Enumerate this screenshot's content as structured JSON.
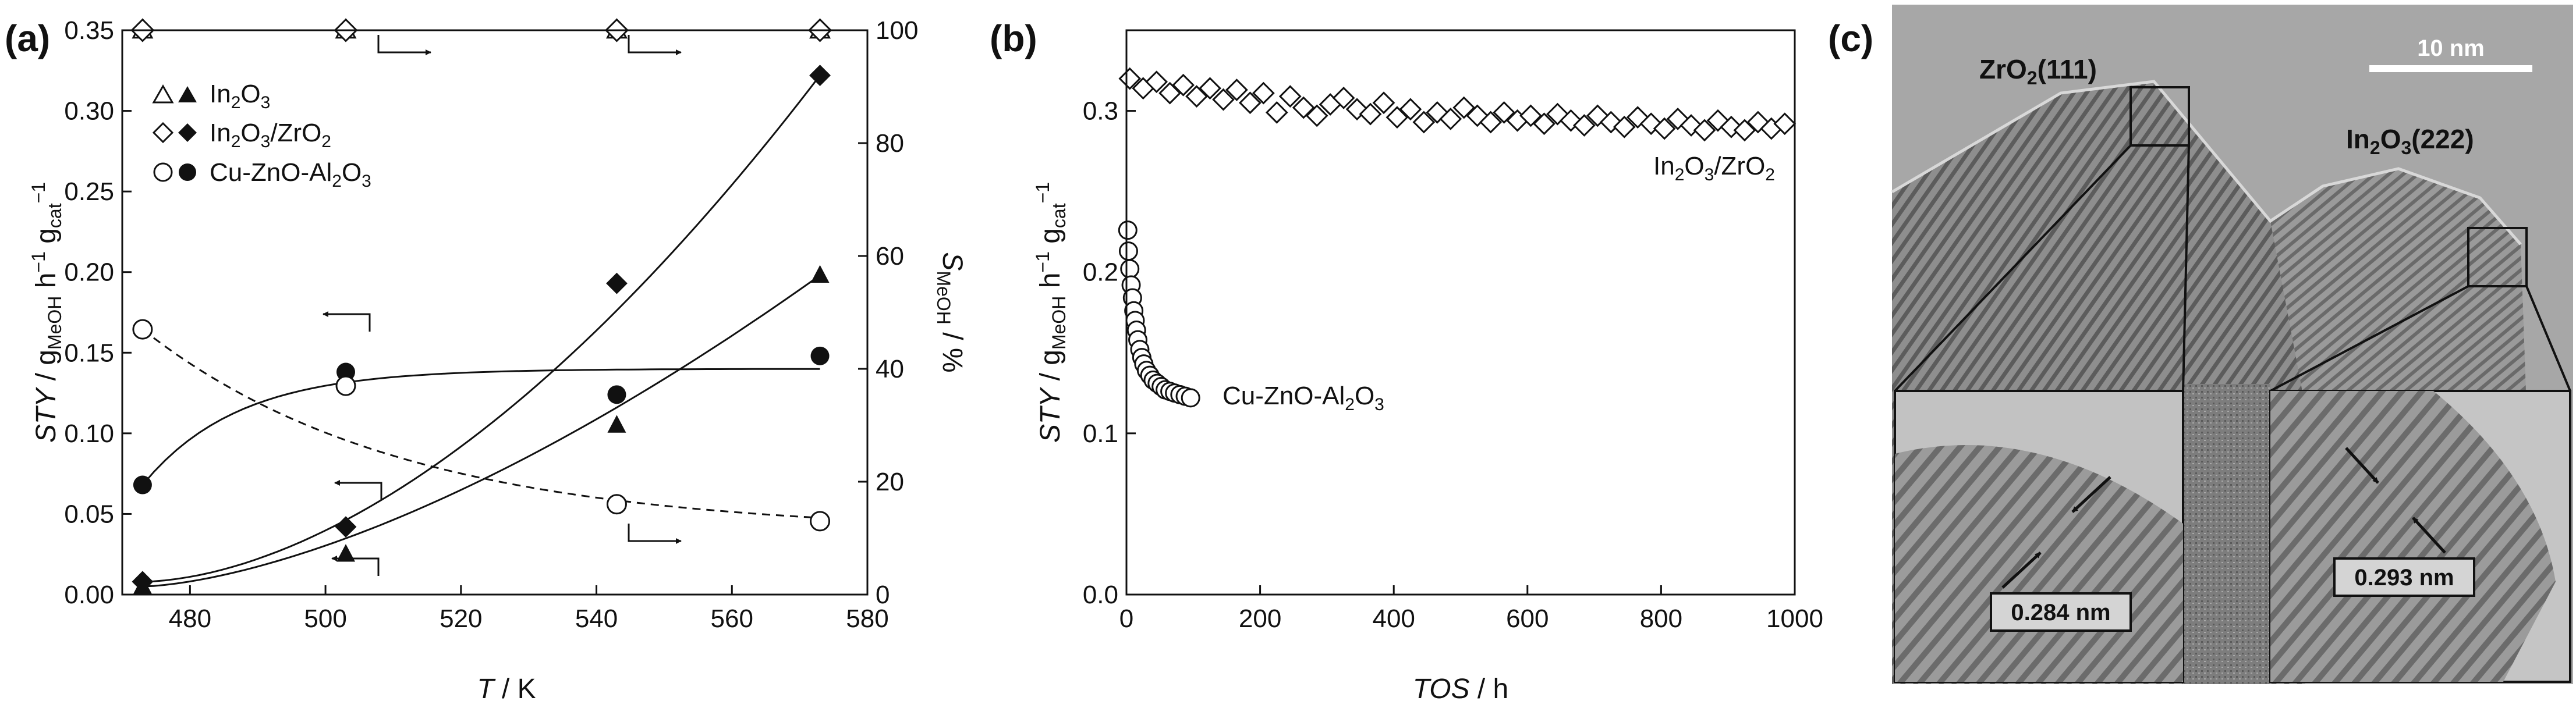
{
  "panels": {
    "a": "(a)",
    "b": "(b)",
    "c": "(c)"
  },
  "chart_data": [
    {
      "type": "scatter",
      "panel": "a",
      "xlabel": {
        "italic": "T",
        "rest": " / K"
      },
      "ylabel_left": {
        "italic": "STY",
        "a": " / g",
        "a_sub": "MeOH",
        "b": " h",
        "b_sup": "−1",
        "c": " g",
        "c_sub": "cat",
        "c_sup": "−1"
      },
      "ylabel_right": {
        "italic": "S",
        "sub": "MeOH",
        "rest": " / %"
      },
      "xlim": [
        470,
        580
      ],
      "ylim_left": [
        0,
        0.35
      ],
      "ylim_right": [
        0,
        100
      ],
      "xticks": [
        480,
        500,
        520,
        540,
        560,
        580
      ],
      "yticks_left": [
        "0.00",
        "0.05",
        "0.10",
        "0.15",
        "0.20",
        "0.25",
        "0.30",
        "0.35"
      ],
      "yticks_right": [
        0,
        20,
        40,
        60,
        80,
        100
      ],
      "legend": [
        {
          "label_main": "In",
          "sub1": "2",
          "mid": "O",
          "sub2": "3",
          "tail": "",
          "open_marker": "triangle",
          "filled_marker": "triangle"
        },
        {
          "label_main": "In",
          "sub1": "2",
          "mid": "O",
          "sub2": "3",
          "tail": "/ZrO",
          "sub3": "2",
          "open_marker": "diamond",
          "filled_marker": "diamond"
        },
        {
          "label_main": "Cu-ZnO-Al",
          "sub1": "2",
          "mid": "O",
          "sub2": "3",
          "tail": "",
          "open_marker": "circle",
          "filled_marker": "circle"
        }
      ],
      "series": [
        {
          "name": "In2O3 STY",
          "axis": "left",
          "marker": "triangle",
          "filled": true,
          "x": [
            473,
            503,
            543,
            573
          ],
          "values": [
            0.005,
            0.025,
            0.105,
            0.198
          ]
        },
        {
          "name": "In2O3/ZrO2 STY",
          "axis": "left",
          "marker": "diamond",
          "filled": true,
          "x": [
            473,
            503,
            543,
            573
          ],
          "values": [
            0.008,
            0.042,
            0.193,
            0.322
          ]
        },
        {
          "name": "Cu-ZnO-Al2O3 STY",
          "axis": "left",
          "marker": "circle",
          "filled": true,
          "x": [
            473,
            503,
            543,
            573
          ],
          "values": [
            0.068,
            0.138,
            0.124,
            0.148
          ]
        },
        {
          "name": "In2O3 selectivity",
          "axis": "right",
          "marker": "triangle",
          "filled": false,
          "x": [
            473,
            503,
            543,
            573
          ],
          "values": [
            100,
            100,
            100,
            100
          ]
        },
        {
          "name": "In2O3/ZrO2 selectivity",
          "axis": "right",
          "marker": "diamond",
          "filled": false,
          "x": [
            473,
            503,
            543,
            573
          ],
          "values": [
            100,
            100,
            100,
            100
          ]
        },
        {
          "name": "Cu-ZnO-Al2O3 selectivity",
          "axis": "right",
          "marker": "circle",
          "filled": false,
          "x": [
            473,
            503,
            543,
            573
          ],
          "values": [
            47,
            37,
            16,
            13
          ]
        }
      ]
    },
    {
      "type": "scatter",
      "panel": "b",
      "xlabel": {
        "italic": "TOS",
        "rest": " / h"
      },
      "ylabel": {
        "italic": "STY",
        "a": " / g",
        "a_sub": "MeOH",
        "b": " h",
        "b_sup": "−1",
        "c": " g",
        "c_sub": "cat",
        "c_sup": "−1"
      },
      "xlim": [
        0,
        1000
      ],
      "ylim": [
        0,
        0.35
      ],
      "xticks": [
        0,
        200,
        400,
        600,
        800,
        1000
      ],
      "yticks": [
        "0.0",
        "0.1",
        "0.2",
        "0.3"
      ],
      "series": [
        {
          "name": "In2O3/ZrO2",
          "marker": "diamond",
          "filled": false,
          "label": {
            "main": "In",
            "sub1": "2",
            "mid": "O",
            "sub2": "3",
            "tail": "/ZrO",
            "sub3": "2"
          },
          "x": [
            5,
            25,
            45,
            65,
            85,
            105,
            125,
            145,
            165,
            185,
            205,
            225,
            245,
            265,
            285,
            305,
            325,
            345,
            365,
            385,
            405,
            425,
            445,
            465,
            485,
            505,
            525,
            545,
            565,
            585,
            605,
            625,
            645,
            665,
            685,
            705,
            725,
            745,
            765,
            785,
            805,
            825,
            845,
            865,
            885,
            905,
            925,
            945,
            965,
            985
          ],
          "values": [
            0.32,
            0.314,
            0.318,
            0.311,
            0.316,
            0.309,
            0.314,
            0.307,
            0.313,
            0.305,
            0.311,
            0.299,
            0.309,
            0.302,
            0.297,
            0.304,
            0.308,
            0.301,
            0.298,
            0.305,
            0.296,
            0.301,
            0.293,
            0.299,
            0.295,
            0.302,
            0.297,
            0.293,
            0.299,
            0.294,
            0.297,
            0.292,
            0.298,
            0.294,
            0.291,
            0.297,
            0.293,
            0.29,
            0.296,
            0.292,
            0.289,
            0.295,
            0.291,
            0.288,
            0.294,
            0.29,
            0.288,
            0.293,
            0.289,
            0.292
          ]
        },
        {
          "name": "Cu-ZnO-Al2O3",
          "marker": "circle",
          "filled": false,
          "label": {
            "main": "Cu-ZnO-Al",
            "sub1": "2",
            "mid": "O",
            "sub2": "3",
            "tail": ""
          },
          "x": [
            2,
            3,
            5,
            7,
            9,
            11,
            13,
            15,
            17,
            20,
            23,
            26,
            30,
            35,
            40,
            46,
            52,
            58,
            65,
            72,
            80,
            88,
            96
          ],
          "values": [
            0.226,
            0.213,
            0.202,
            0.192,
            0.184,
            0.176,
            0.17,
            0.164,
            0.158,
            0.152,
            0.147,
            0.143,
            0.139,
            0.136,
            0.133,
            0.131,
            0.129,
            0.127,
            0.126,
            0.125,
            0.124,
            0.123,
            0.122
          ]
        }
      ]
    }
  ],
  "micrograph": {
    "scale_bar": "10 nm",
    "label_zro2": {
      "main": "ZrO",
      "sub": "2",
      "rest": "(111)"
    },
    "label_in2o3": {
      "main": "In",
      "sub1": "2",
      "mid": "O",
      "sub2": "3",
      "rest": "(222)"
    },
    "spacing_left": "0.284 nm",
    "spacing_right": "0.293 nm"
  }
}
